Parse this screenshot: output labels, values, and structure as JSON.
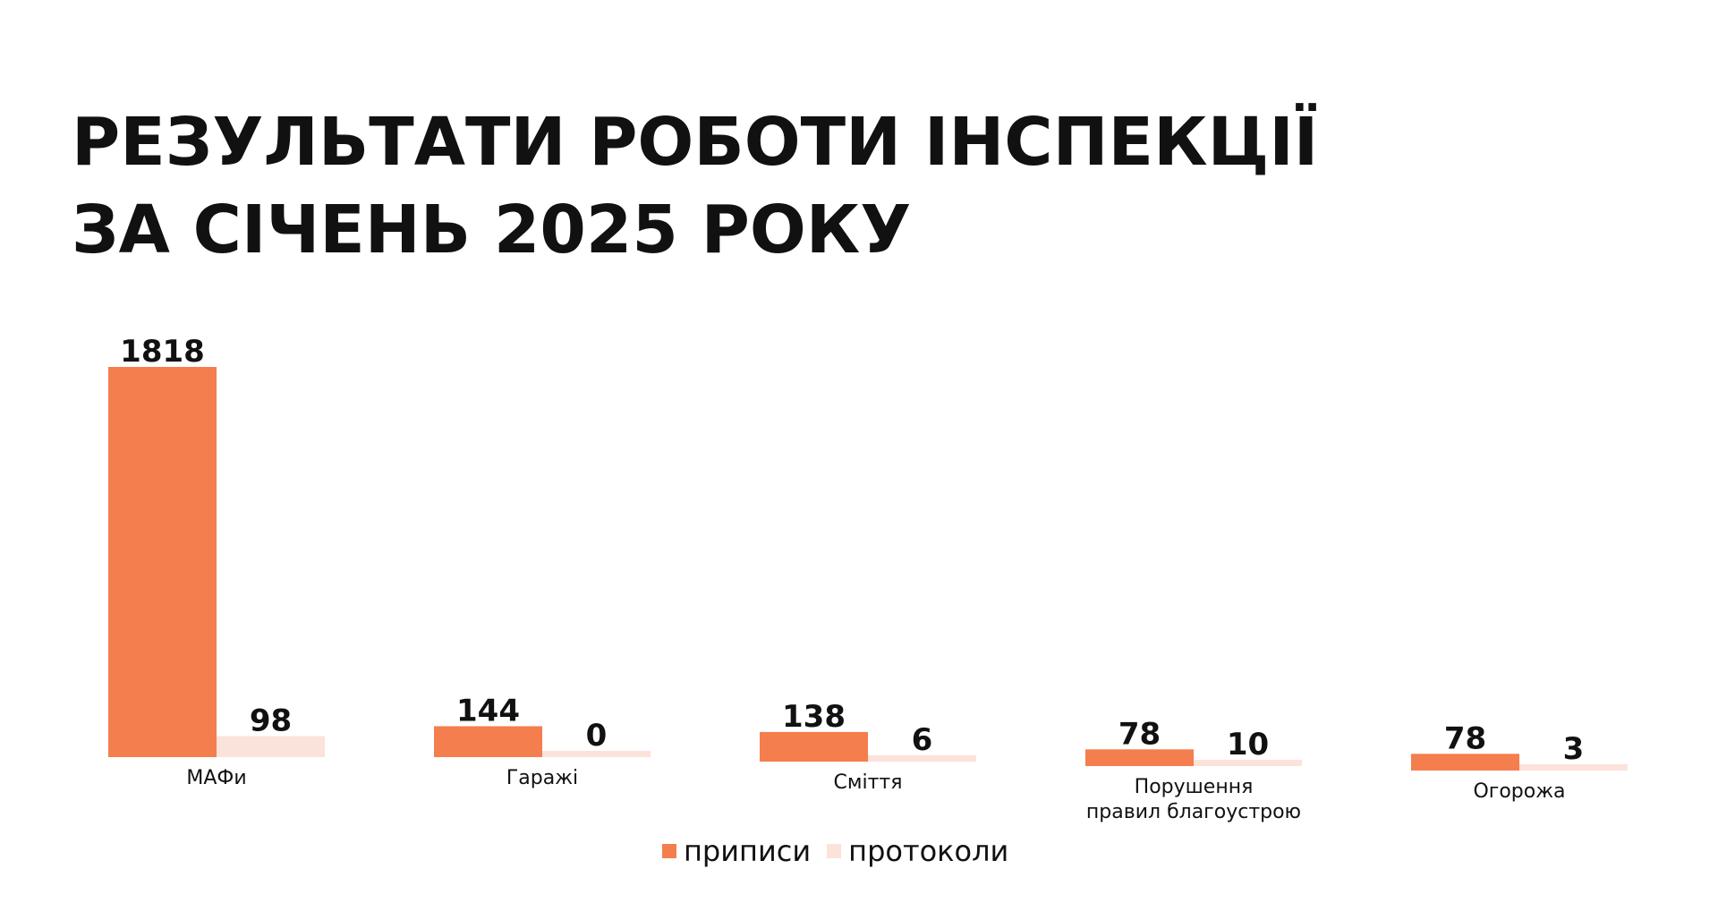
{
  "title_lines": [
    "РЕЗУЛЬТАТИ РОБОТИ ІНСПЕКЦІЇ",
    "ЗА СІЧЕНЬ 2025 РОКУ"
  ],
  "colors": {
    "primary": "#F47E4E",
    "secondary": "#FBE2DA",
    "text": "#111111"
  },
  "legend": {
    "items": [
      {
        "label": "приписи",
        "color": "#F47E4E"
      },
      {
        "label": "протоколи",
        "color": "#FBE2DA"
      }
    ],
    "placement": "bottom-center"
  },
  "chart_data": {
    "type": "bar",
    "title": "РЕЗУЛЬТАТИ РОБОТИ ІНСПЕКЦІЇ ЗА СІЧЕНЬ 2025 РОКУ",
    "categories": [
      [
        "МАФи"
      ],
      [
        "Гаражі"
      ],
      [
        "Сміття"
      ],
      [
        "Порушення",
        "правил благоустрою"
      ],
      [
        "Огорожа"
      ]
    ],
    "series": [
      {
        "name": "приписи",
        "values": [
          1818,
          144,
          138,
          78,
          78
        ]
      },
      {
        "name": "протоколи",
        "values": [
          98,
          0,
          6,
          10,
          3
        ]
      }
    ],
    "grid": false,
    "legend_placement": "bottom"
  }
}
